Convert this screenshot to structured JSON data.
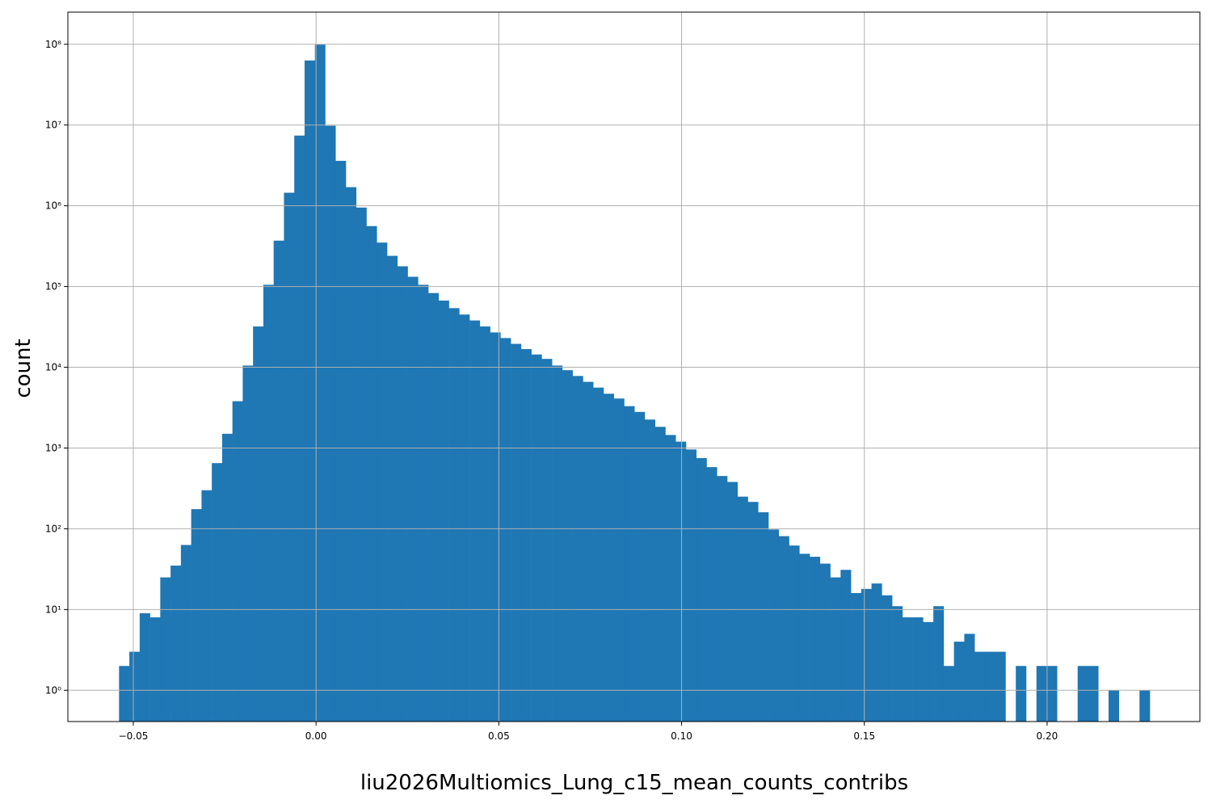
{
  "chart_data": {
    "type": "histogram",
    "xlabel": "liu2026Multiomics_Lung_c15_mean_counts_contribs",
    "ylabel": "count",
    "color": "#1f77b4",
    "yscale": "log",
    "grid": true,
    "bins": [
      -0.0539,
      -0.05108,
      -0.04826,
      -0.04544,
      -0.04262,
      -0.0398,
      -0.03698,
      -0.03416,
      -0.03134,
      -0.02852,
      -0.0257,
      -0.02288,
      -0.02006,
      -0.01724,
      -0.01442,
      -0.0116,
      -0.00878,
      -0.00596,
      -0.00314,
      -0.00032,
      0.0025,
      0.00532,
      0.00814,
      0.01096,
      0.01378,
      0.0166,
      0.01942,
      0.02224,
      0.02506,
      0.02788,
      0.0307,
      0.03352,
      0.03634,
      0.03916,
      0.04198,
      0.0448,
      0.04762,
      0.05044,
      0.05326,
      0.05608,
      0.0589,
      0.06172,
      0.06454,
      0.06736,
      0.07018,
      0.073,
      0.07582,
      0.07864,
      0.08146,
      0.08428,
      0.0871,
      0.08992,
      0.09274,
      0.09556,
      0.09838,
      0.1012,
      0.10402,
      0.10684,
      0.10966,
      0.11248,
      0.1153,
      0.11812,
      0.12094,
      0.12376,
      0.12658,
      0.1294,
      0.13222,
      0.13504,
      0.13786,
      0.14068,
      0.1435,
      0.14632,
      0.14914,
      0.15196,
      0.15478,
      0.1576,
      0.16042,
      0.16324,
      0.16606,
      0.16888,
      0.1717,
      0.17452,
      0.17734,
      0.18016,
      0.18298,
      0.1858,
      0.18862,
      0.19144,
      0.19426,
      0.19708,
      0.1999,
      0.20272,
      0.20554,
      0.20836,
      0.21118,
      0.214,
      0.21682,
      0.21964,
      0.22246,
      0.22528,
      0.2281
    ],
    "values": [
      2,
      3,
      9,
      8,
      25,
      35,
      63,
      175,
      300,
      650,
      1500,
      3800,
      10500,
      32000,
      105000,
      370000,
      1450000,
      7400000,
      63000000,
      99000000,
      9800000,
      3600000,
      1700000,
      950000,
      560000,
      350000,
      240000,
      178000,
      132000,
      105000,
      83000,
      67000,
      54000,
      45000,
      38000,
      32000,
      27000,
      23000,
      19500,
      16800,
      14400,
      12700,
      10500,
      9200,
      7800,
      6600,
      5600,
      4700,
      4100,
      3300,
      2800,
      2250,
      1830,
      1450,
      1200,
      960,
      750,
      580,
      450,
      380,
      250,
      215,
      160,
      98,
      81,
      62,
      49,
      45,
      37,
      25,
      31,
      16,
      18,
      21,
      15,
      11,
      8,
      8,
      7,
      11,
      2,
      4,
      5,
      3,
      3,
      3,
      0,
      2,
      0,
      2,
      2,
      0,
      0,
      2,
      2,
      0,
      1,
      0,
      0,
      1
    ],
    "xlim": [
      -0.0679,
      0.2418
    ],
    "ylim": [
      0.41,
      250000000
    ],
    "xticks": [
      {
        "value": -0.05,
        "label": "−0.05"
      },
      {
        "value": 0,
        "label": "0.00"
      },
      0.05,
      {
        "value": 0.1,
        "label": "0.10"
      },
      0.15,
      {
        "value": 0.2,
        "label": "0.20"
      }
    ],
    "yticks": [
      {
        "value": 1,
        "label": "10⁰"
      },
      {
        "value": 10,
        "label": "10¹"
      },
      {
        "value": 100,
        "label": "10²"
      },
      {
        "value": 1000,
        "label": "10³"
      },
      {
        "value": 10000,
        "label": "10⁴"
      },
      {
        "value": 100000,
        "label": "10⁵"
      },
      {
        "value": 1000000,
        "label": "10⁶"
      },
      {
        "value": 10000000,
        "label": "10⁷"
      },
      {
        "value": 100000000,
        "label": "10⁸"
      }
    ]
  }
}
